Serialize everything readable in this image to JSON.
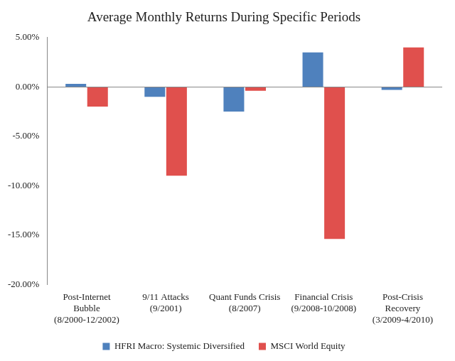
{
  "chart_data": {
    "type": "bar",
    "title": "Average Monthly Returns During Specific Periods",
    "categories": [
      [
        "Post-Internet",
        "Bubble",
        "(8/2000-12/2002)"
      ],
      [
        "9/11 Attacks",
        "(9/2001)"
      ],
      [
        "Quant Funds Crisis",
        "(8/2007)"
      ],
      [
        "Financial Crisis",
        "(9/2008-10/2008)"
      ],
      [
        "Post-Crisis",
        "Recovery",
        "(3/2009-4/2010)"
      ]
    ],
    "series": [
      {
        "name": "HFRI Macro: Systemic Diversified",
        "color": "#4f81bd",
        "values": [
          0.3,
          -1.0,
          -2.5,
          3.5,
          -0.3
        ]
      },
      {
        "name": "MSCI World Equity",
        "color": "#e0504d",
        "values": [
          -2.0,
          -9.0,
          -0.4,
          -15.4,
          4.0
        ]
      }
    ],
    "ylim": [
      -20,
      5
    ],
    "yticks": [
      {
        "value": 5,
        "label": "5.00%"
      },
      {
        "value": 0,
        "label": "0.00%"
      },
      {
        "value": -5,
        "label": "-5.00%"
      },
      {
        "value": -10,
        "label": "-10.00%"
      },
      {
        "value": -15,
        "label": "-15.00%"
      },
      {
        "value": -20,
        "label": "-20.00%"
      }
    ],
    "grid": false,
    "legend": "bottom"
  }
}
